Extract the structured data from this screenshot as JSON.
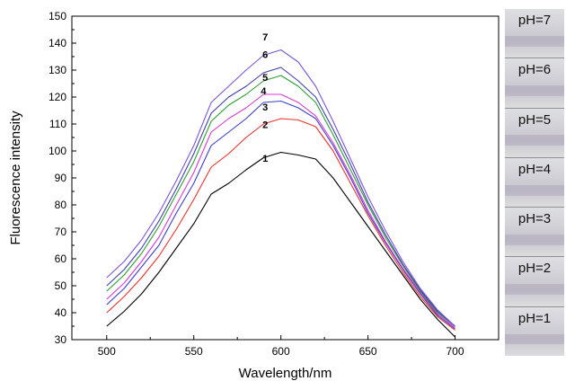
{
  "chart_data": {
    "type": "line",
    "xlabel": "Wavelength/nm",
    "ylabel": "Fluorescence intensity",
    "xlim": [
      480,
      725
    ],
    "ylim": [
      30,
      150
    ],
    "xticks": [
      500,
      550,
      600,
      650,
      700
    ],
    "yticks": [
      30,
      40,
      50,
      60,
      70,
      80,
      90,
      100,
      110,
      120,
      130,
      140,
      150
    ],
    "grid": false,
    "x": [
      500,
      510,
      520,
      530,
      540,
      550,
      560,
      570,
      580,
      590,
      600,
      610,
      620,
      630,
      640,
      650,
      660,
      670,
      680,
      690,
      700
    ],
    "series": [
      {
        "name": "1",
        "color": "#000000",
        "values": [
          35,
          40.5,
          47,
          55,
          64,
          73,
          84,
          88,
          93,
          97.5,
          99.5,
          98.5,
          97,
          90,
          81,
          72,
          63,
          54,
          45,
          37.5,
          31
        ]
      },
      {
        "name": "2",
        "color": "#e8322b",
        "values": [
          40,
          46,
          53,
          61,
          71,
          82,
          94,
          99,
          105,
          110,
          112,
          111.5,
          109,
          100,
          88,
          76,
          65,
          55,
          46,
          38.5,
          33.5
        ]
      },
      {
        "name": "3",
        "color": "#3b3fc8",
        "values": [
          43,
          49,
          57,
          65,
          77,
          88,
          102,
          107,
          112,
          118,
          118.5,
          116,
          112,
          102,
          90,
          77,
          66,
          56,
          47,
          39,
          34
        ]
      },
      {
        "name": "4",
        "color": "#d83ad0",
        "values": [
          45,
          51,
          59,
          68,
          80,
          92,
          107,
          112,
          116,
          121,
          121,
          118,
          113,
          103,
          91,
          78,
          66.5,
          56.5,
          47.5,
          39.5,
          34.5
        ]
      },
      {
        "name": "5",
        "color": "#2e9e2e",
        "values": [
          48,
          54,
          62,
          72,
          84,
          96,
          111,
          117,
          121,
          126,
          128,
          124,
          118,
          106,
          93,
          80,
          68,
          57.5,
          48,
          40,
          35
        ]
      },
      {
        "name": "6",
        "color": "#3f3fb0",
        "values": [
          50,
          56,
          64,
          74,
          86,
          99,
          114,
          120,
          124,
          129,
          131,
          126,
          120,
          108,
          95,
          81,
          69,
          58,
          48.5,
          40.5,
          35
        ]
      },
      {
        "name": "7",
        "color": "#7a55d8",
        "values": [
          53,
          59,
          67,
          77,
          89,
          102,
          118,
          124,
          130,
          135.5,
          137.5,
          133,
          124,
          111,
          97,
          83,
          70.5,
          59,
          49,
          41,
          35
        ]
      }
    ],
    "curve_labels": [
      {
        "text": "7",
        "x": 591,
        "y": 141
      },
      {
        "text": "6",
        "x": 591,
        "y": 134.5
      },
      {
        "text": "5",
        "x": 591,
        "y": 126
      },
      {
        "text": "4",
        "x": 590,
        "y": 121
      },
      {
        "text": "3",
        "x": 591,
        "y": 115
      },
      {
        "text": "2",
        "x": 591,
        "y": 108.5
      },
      {
        "text": "1",
        "x": 591,
        "y": 96
      }
    ]
  },
  "photo_panel": {
    "labels": [
      "pH=7",
      "pH=6",
      "pH=5",
      "pH=4",
      "pH=3",
      "pH=2",
      "pH=1"
    ]
  }
}
